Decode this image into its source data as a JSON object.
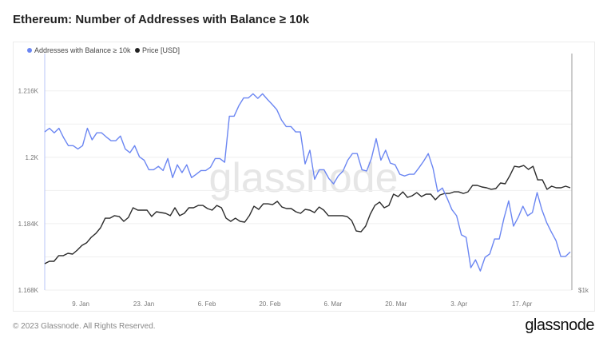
{
  "header": {
    "title": "Ethereum: Number of Addresses with Balance ≥ 10k"
  },
  "footer": {
    "copyright": "© 2023 Glassnode. All Rights Reserved.",
    "logo": "glassnode"
  },
  "watermark": "glassnode",
  "chart_data": {
    "type": "line",
    "title": "Ethereum: Number of Addresses with Balance ≥ 10k",
    "legend_position": "top-left",
    "x_range_days": [
      0,
      116.7
    ],
    "x_start": "1 Jan 2023",
    "x_ticks": [
      {
        "day": 8,
        "label": "9. Jan"
      },
      {
        "day": 22,
        "label": "23. Jan"
      },
      {
        "day": 36,
        "label": "6. Feb"
      },
      {
        "day": 50,
        "label": "20. Feb"
      },
      {
        "day": 64,
        "label": "6. Mar"
      },
      {
        "day": 78,
        "label": "20. Mar"
      },
      {
        "day": 92,
        "label": "3. Apr"
      },
      {
        "day": 106,
        "label": "17. Apr"
      }
    ],
    "y_left": {
      "range": [
        1168,
        1225
      ],
      "ticks": [
        {
          "value": 1168,
          "label": "1.168K"
        },
        {
          "value": 1184,
          "label": "1.184K"
        },
        {
          "value": 1200,
          "label": "1.2K"
        },
        {
          "value": 1216,
          "label": "1.216K"
        }
      ],
      "gridlines": [
        1168,
        1176,
        1184,
        1192,
        1200,
        1208,
        1216
      ]
    },
    "y_right": {
      "range": [
        1000,
        2794
      ],
      "scale": "linear",
      "ticks": [
        {
          "value": 1000,
          "label": "$1k"
        }
      ]
    },
    "series": [
      {
        "name": "Addresses with Balance ≥ 10k",
        "axis": "left",
        "color": "#6b86f2",
        "values": [
          1206.1,
          1207.0,
          1205.9,
          1207.0,
          1204.7,
          1202.8,
          1202.8,
          1202.0,
          1202.8,
          1207.0,
          1204.2,
          1205.9,
          1205.9,
          1204.9,
          1204.0,
          1204.0,
          1205.1,
          1202.0,
          1201.1,
          1202.8,
          1200.1,
          1199.3,
          1197.0,
          1197.0,
          1197.8,
          1196.8,
          1199.7,
          1195.1,
          1198.2,
          1196.3,
          1198.2,
          1195.1,
          1195.9,
          1196.8,
          1196.8,
          1197.6,
          1199.7,
          1199.7,
          1198.8,
          1209.9,
          1209.9,
          1212.4,
          1214.3,
          1214.3,
          1215.3,
          1214.2,
          1215.3,
          1214.0,
          1212.8,
          1211.5,
          1209.0,
          1207.4,
          1207.4,
          1206.1,
          1206.1,
          1198.4,
          1201.7,
          1194.7,
          1197.0,
          1197.0,
          1194.9,
          1193.6,
          1195.5,
          1196.7,
          1199.3,
          1200.9,
          1200.9,
          1197.0,
          1196.7,
          1199.7,
          1204.5,
          1199.3,
          1201.7,
          1198.6,
          1198.2,
          1195.9,
          1195.5,
          1195.9,
          1195.9,
          1197.4,
          1199.0,
          1200.9,
          1197.4,
          1191.7,
          1192.6,
          1190.1,
          1187.4,
          1185.9,
          1181.3,
          1180.7,
          1173.4,
          1175.3,
          1172.6,
          1175.9,
          1176.7,
          1180.3,
          1180.3,
          1185.3,
          1189.5,
          1183.4,
          1185.5,
          1188.2,
          1185.9,
          1186.7,
          1191.5,
          1187.4,
          1184.3,
          1182.0,
          1179.9,
          1176.1,
          1176.1,
          1177.2
        ]
      },
      {
        "name": "Price [USD]",
        "axis": "right",
        "color": "#2b2b2b",
        "values": [
          1200,
          1218,
          1218,
          1261,
          1261,
          1279,
          1273,
          1303,
          1339,
          1358,
          1400,
          1430,
          1473,
          1545,
          1545,
          1564,
          1558,
          1521,
          1551,
          1624,
          1606,
          1606,
          1606,
          1558,
          1594,
          1588,
          1582,
          1564,
          1624,
          1564,
          1582,
          1624,
          1624,
          1642,
          1642,
          1618,
          1606,
          1642,
          1624,
          1545,
          1521,
          1545,
          1521,
          1515,
          1564,
          1636,
          1612,
          1654,
          1654,
          1648,
          1673,
          1630,
          1618,
          1618,
          1594,
          1582,
          1612,
          1606,
          1588,
          1630,
          1606,
          1564,
          1564,
          1564,
          1564,
          1558,
          1527,
          1448,
          1442,
          1485,
          1576,
          1642,
          1667,
          1624,
          1642,
          1727,
          1709,
          1745,
          1703,
          1715,
          1739,
          1709,
          1727,
          1727,
          1685,
          1721,
          1733,
          1733,
          1745,
          1745,
          1733,
          1745,
          1794,
          1794,
          1782,
          1776,
          1764,
          1770,
          1812,
          1806,
          1867,
          1939,
          1933,
          1945,
          1915,
          1939,
          1836,
          1836,
          1764,
          1788,
          1776,
          1776,
          1788,
          1776
        ]
      }
    ]
  }
}
